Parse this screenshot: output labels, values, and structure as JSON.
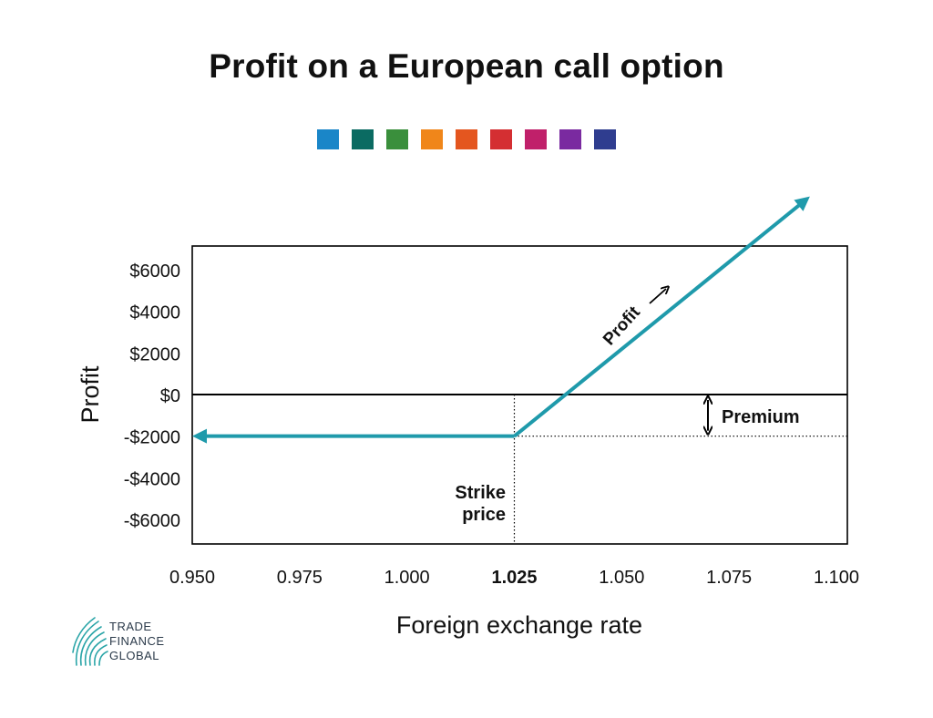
{
  "chart_data": {
    "type": "line",
    "title": "Profit on a European call option",
    "xlabel": "Foreign exchange rate",
    "ylabel": "Profit",
    "xlim": [
      0.95,
      1.1
    ],
    "ylim": [
      -7000,
      7000
    ],
    "x_ticks": [
      {
        "label": "0.950",
        "value": 0.95,
        "bold": false
      },
      {
        "label": "0.975",
        "value": 0.975,
        "bold": false
      },
      {
        "label": "1.000",
        "value": 1.0,
        "bold": false
      },
      {
        "label": "1.025",
        "value": 1.025,
        "bold": true
      },
      {
        "label": "1.050",
        "value": 1.05,
        "bold": false
      },
      {
        "label": "1.075",
        "value": 1.075,
        "bold": false
      },
      {
        "label": "1.100",
        "value": 1.1,
        "bold": false
      }
    ],
    "y_ticks": [
      {
        "label": "$6000",
        "value": 6000
      },
      {
        "label": "$4000",
        "value": 4000
      },
      {
        "label": "$2000",
        "value": 2000
      },
      {
        "label": "$0",
        "value": 0
      },
      {
        "label": "-$2000",
        "value": -2000
      },
      {
        "label": "-$4000",
        "value": -4000
      },
      {
        "label": "-$6000",
        "value": -6000
      }
    ],
    "series": [
      {
        "color": "#1f9aab",
        "x": [
          0.95,
          1.025,
          1.0925
        ],
        "y": [
          -2000,
          -2000,
          9300
        ]
      }
    ],
    "strike_price": 1.025,
    "premium": 2000,
    "annotations": {
      "strike_line1": "Strike",
      "strike_line2": "price",
      "premium": "Premium",
      "profit": "Profit"
    },
    "grid": false
  },
  "palette": [
    "#1a86c8",
    "#0b6b62",
    "#3a8f3c",
    "#f0861a",
    "#e4561f",
    "#d42f32",
    "#c0206a",
    "#7a2aa0",
    "#2f3d8f"
  ],
  "logo": {
    "lines": [
      "TRADE",
      "FINANCE",
      "GLOBAL"
    ],
    "icon": "fingerprint-icon",
    "color": "#2ba5a8"
  }
}
